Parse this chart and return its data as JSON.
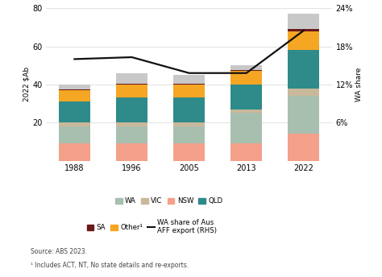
{
  "years": [
    1988,
    1996,
    2005,
    2013,
    2022
  ],
  "bar_data": {
    "NSW": [
      9,
      9,
      9,
      9,
      14
    ],
    "WA": [
      9,
      9,
      9,
      16,
      20
    ],
    "VIC": [
      2,
      2,
      2,
      2,
      4
    ],
    "QLD": [
      11,
      13,
      13,
      13,
      20
    ],
    "Other": [
      6,
      7,
      7,
      7,
      10
    ],
    "SA": [
      0.5,
      0.5,
      0.5,
      0.5,
      1
    ],
    "Gray": [
      2.5,
      5.5,
      4.5,
      2.5,
      8
    ]
  },
  "wa_share_line_pct": [
    0.16,
    0.163,
    0.138,
    0.138,
    0.205
  ],
  "colors": {
    "NSW": "#F4A08A",
    "WA": "#A8BFB0",
    "VIC": "#C9B89A",
    "QLD": "#2E8B8A",
    "Other": "#F5A623",
    "SA": "#6B1A1A",
    "Gray": "#C8C8C8"
  },
  "ylim_left": [
    0,
    80
  ],
  "ylim_right": [
    0,
    0.24
  ],
  "yticks_left": [
    20,
    40,
    60,
    80
  ],
  "ytick_left_labels": [
    "20",
    "40",
    "60",
    "80"
  ],
  "yticks_right": [
    0.06,
    0.12,
    0.18,
    0.24
  ],
  "ytick_right_labels": [
    "6%",
    "12%",
    "18%",
    "24%"
  ],
  "ylabel_left": "2022 $Ab",
  "ylabel_right": "WA share",
  "legend_row1": [
    {
      "label": "WA",
      "color": "#A8BFB0",
      "type": "patch"
    },
    {
      "label": "VIC",
      "color": "#C9B89A",
      "type": "patch"
    },
    {
      "label": "NSW",
      "color": "#F4A08A",
      "type": "patch"
    },
    {
      "label": "QLD",
      "color": "#2E8B8A",
      "type": "patch"
    }
  ],
  "legend_row2": [
    {
      "label": "SA",
      "color": "#6B1A1A",
      "type": "patch"
    },
    {
      "label": "Other¹",
      "color": "#F5A623",
      "type": "patch"
    },
    {
      "label": "WA share of Aus\nAFF export (RHS)",
      "color": "#111111",
      "type": "line"
    }
  ],
  "bar_width": 0.55,
  "background_color": "#ffffff",
  "grid_color": "#dddddd",
  "source_text": "Source: ABS 2023.",
  "footnote_text": "¹ Includes ACT, NT, No state details and re-exports."
}
